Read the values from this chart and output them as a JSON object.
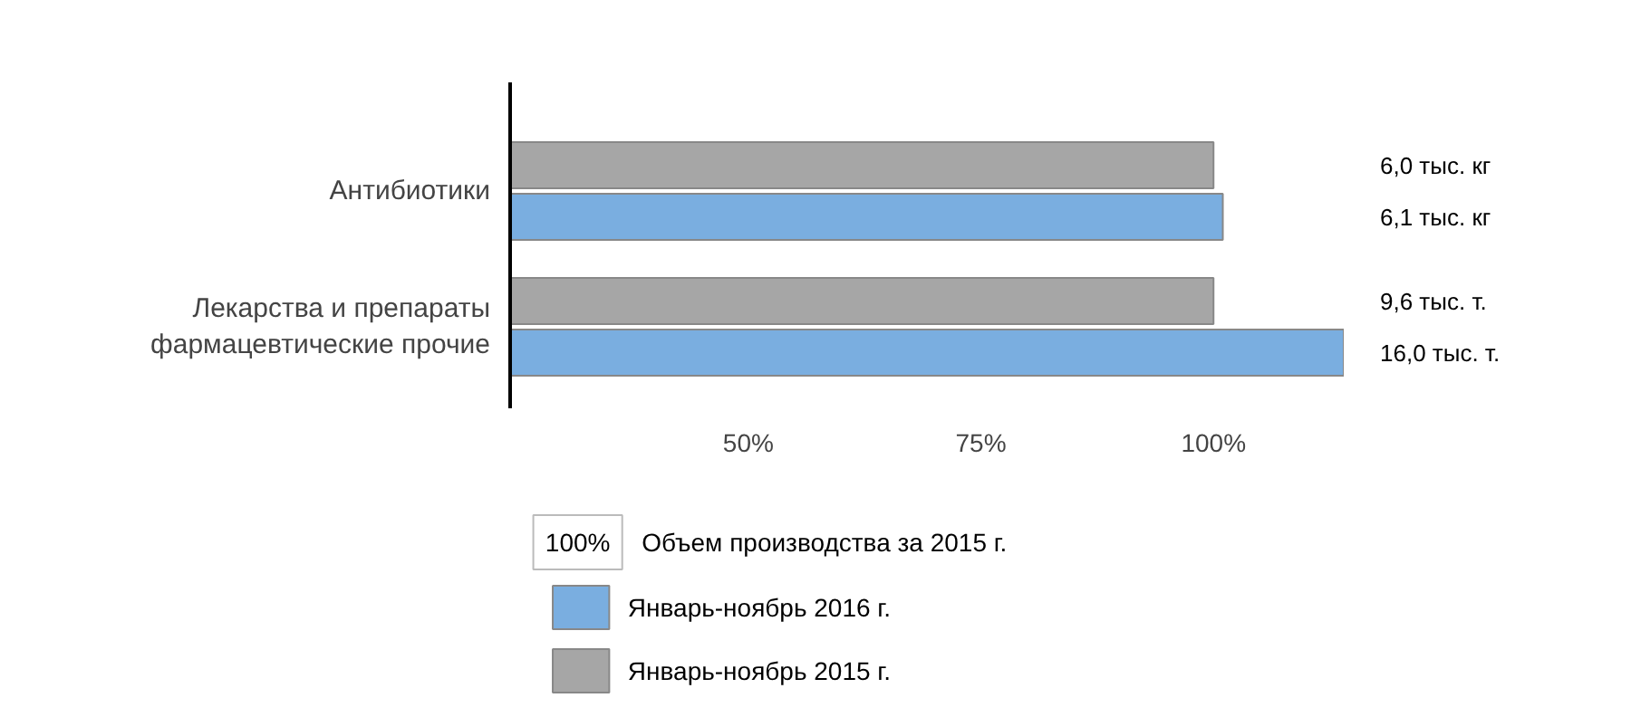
{
  "chart_data": {
    "type": "bar",
    "orientation": "horizontal",
    "categories": [
      "Антибиотики",
      "Лекарства и препараты\nфармацевтические прочие"
    ],
    "series": [
      {
        "name": "Январь-ноябрь 2015 г.",
        "color": "#a6a6a6",
        "values": [
          100,
          100
        ]
      },
      {
        "name": "Январь-ноябрь 2016 г.",
        "color": "#7aaee0",
        "values": [
          101,
          114
        ]
      }
    ],
    "xlim": [
      24.4,
      114
    ],
    "xticks": [
      {
        "value": 50,
        "label": "50%"
      },
      {
        "value": 75,
        "label": "75%"
      },
      {
        "value": 100,
        "label": "100%"
      }
    ],
    "grid": false,
    "legend": "bottom left",
    "annotations": [
      "100%",
      "Объем производства за 2015 г.",
      "6,0 тыс. кг",
      "6,1 тыс. кг",
      "9,6 тыс. т.",
      "16,0 тыс. т."
    ]
  }
}
